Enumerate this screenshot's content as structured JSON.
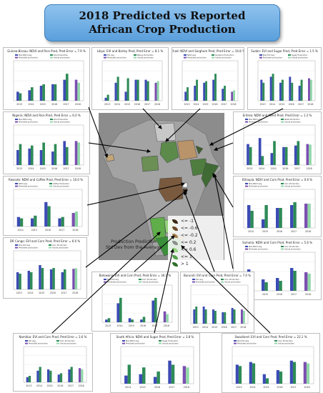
{
  "title": {
    "line1": "2018 Predicted vs Reported",
    "line2": "African Crop Production"
  },
  "colors": {
    "ndvi": "#3c4bb4",
    "crop": "#2e8b57",
    "predicted": "#7b4fb0",
    "actual": "#90d8a8"
  },
  "legend": {
    "items": [
      "<= -1",
      "<= -0.6",
      "<= -0.2",
      "<= 0.2",
      "<= 0.6",
      "<= 1",
      "> 1"
    ],
    "caption_line1": "Production Prediction",
    "caption_line2": "Std Dev from the Average"
  },
  "panels": [
    {
      "id": "guinea-bissau",
      "title": "Guinea-Bissau: NDVI and Rice Prod, Pred Error = 7.9 %"
    },
    {
      "id": "libya",
      "title": "Libya: EVI and Barley Prod, Pred Error = 8.1 %"
    },
    {
      "id": "chad",
      "title": "Chad: NDVI and Sorghum Prod, Pred Error = 16.8 %"
    },
    {
      "id": "sudan",
      "title": "Sudan: EVI and Sugar Prod, Pred Error = 1.5 %"
    },
    {
      "id": "nigeria",
      "title": "Nigeria: NDVI and Rice Prod, Pred Error = 6.0 %"
    },
    {
      "id": "eritrea",
      "title": "Eritrea: NDVI and Millet Prod, Pred Error = 1.2 %"
    },
    {
      "id": "rwanda",
      "title": "Rwanda: NDVI and Coffee Prod, Pred Error = 10.0 %"
    },
    {
      "id": "ethiopia",
      "title": "Ethiopia: NDVI and Corn Prod, Pred Error = 0.6 %"
    },
    {
      "id": "dr-congo",
      "title": "DR Congo: EVI and Corn Prod, Pred Error = 6.6 %"
    },
    {
      "id": "somalia",
      "title": "Somalia: NDVI and Corn Prod, Pred Error = 5.6 %"
    },
    {
      "id": "botswana",
      "title": "Botswana: EVI and Corn Prod, Pred Error = 36.1 %"
    },
    {
      "id": "burundi",
      "title": "Burundi: EVI and Corn Prod, Pred Error = 7.0 %"
    },
    {
      "id": "namibia",
      "title": "Namibia: EVI and Corn Prod, Pred Error = 3.6 %"
    },
    {
      "id": "south-africa",
      "title": "South Africa: NDVI and Sugar Prod, Pred Error = 3.8 %"
    },
    {
      "id": "swaziland",
      "title": "Swaziland: EVI and Corn Prod, Pred Error = 22.1 %"
    }
  ],
  "chart_data": [
    {
      "id": "guinea-bissau",
      "type": "bar",
      "categories": [
        "2013",
        "2014",
        "2015",
        "2016",
        "2017",
        "2018"
      ],
      "series": [
        {
          "name": "Max NDVI Avg",
          "values": [
            0.3,
            0.35,
            0.5,
            0.55,
            0.7,
            0.0
          ]
        },
        {
          "name": "Rice Production",
          "values": [
            0.25,
            0.45,
            0.55,
            0.55,
            0.9,
            0.0
          ]
        },
        {
          "name": "Predicted production",
          "values": [
            0,
            0,
            0,
            0,
            0,
            0.7
          ]
        },
        {
          "name": "Actual production",
          "values": [
            0,
            0,
            0,
            0,
            0,
            0.6
          ]
        }
      ]
    },
    {
      "id": "libya",
      "type": "bar",
      "categories": [
        "2013",
        "2014",
        "2015",
        "2016",
        "2017",
        "2018"
      ],
      "series": [
        {
          "name": "EVI Avg",
          "values": [
            0.1,
            0.6,
            0.3,
            0.7,
            0.7,
            0.0
          ]
        },
        {
          "name": "Barley Production",
          "values": [
            0.2,
            0.8,
            0.75,
            0.7,
            0.65,
            0.0
          ]
        },
        {
          "name": "Predicted production",
          "values": [
            0,
            0,
            0,
            0,
            0,
            0.6
          ]
        },
        {
          "name": "Actual production",
          "values": [
            0,
            0,
            0,
            0,
            0,
            0.65
          ]
        }
      ]
    },
    {
      "id": "chad",
      "type": "bar",
      "categories": [
        "2013",
        "2014",
        "2015",
        "2016",
        "2017",
        "2018"
      ],
      "series": [
        {
          "name": "NDVI Avg",
          "values": [
            0.3,
            0.5,
            0.6,
            0.7,
            0.4,
            0.0
          ]
        },
        {
          "name": "Sorghum Production",
          "values": [
            0.45,
            0.7,
            0.65,
            0.9,
            0.5,
            0.0
          ]
        },
        {
          "name": "Predicted production",
          "values": [
            0,
            0,
            0,
            0,
            0,
            0.3
          ]
        },
        {
          "name": "Actual production",
          "values": [
            0,
            0,
            0,
            0,
            0,
            0.35
          ]
        }
      ]
    },
    {
      "id": "sudan",
      "type": "bar",
      "categories": [
        "2013",
        "2014",
        "2015",
        "2016",
        "2017",
        "2018"
      ],
      "series": [
        {
          "name": "Max EVI Avg",
          "values": [
            0.7,
            0.8,
            0.6,
            0.8,
            0.5,
            0.0
          ]
        },
        {
          "name": "Sugar Production",
          "values": [
            0.6,
            0.9,
            0.7,
            0.6,
            0.7,
            0.0
          ]
        },
        {
          "name": "Predicted production",
          "values": [
            0,
            0,
            0,
            0,
            0,
            0.75
          ]
        },
        {
          "name": "Actual production",
          "values": [
            0,
            0,
            0,
            0,
            0,
            0.7
          ]
        }
      ]
    },
    {
      "id": "nigeria",
      "type": "bar",
      "categories": [
        "2013",
        "2014",
        "2015",
        "2016",
        "2017",
        "2018"
      ],
      "series": [
        {
          "name": "Max NDVI Avg",
          "values": [
            0.5,
            0.55,
            0.5,
            0.45,
            0.8,
            0.0
          ]
        },
        {
          "name": "Rice Production",
          "values": [
            0.7,
            0.65,
            0.75,
            0.7,
            0.6,
            0.0
          ]
        },
        {
          "name": "Predicted production",
          "values": [
            0,
            0,
            0,
            0,
            0,
            0.8
          ]
        },
        {
          "name": "Actual production",
          "values": [
            0,
            0,
            0,
            0,
            0,
            0.75
          ]
        }
      ]
    },
    {
      "id": "eritrea",
      "type": "bar",
      "categories": [
        "2013",
        "2014",
        "2015",
        "2016",
        "2017",
        "2018"
      ],
      "series": [
        {
          "name": "Max NDVI Avg",
          "values": [
            0.7,
            0.9,
            0.4,
            0.6,
            0.65,
            0.0
          ]
        },
        {
          "name": "Millet Production",
          "values": [
            0.6,
            0.3,
            0.8,
            0.6,
            0.8,
            0.0
          ]
        },
        {
          "name": "Predicted production",
          "values": [
            0,
            0,
            0,
            0,
            0,
            0.7
          ]
        },
        {
          "name": "Actual production",
          "values": [
            0,
            0,
            0,
            0,
            0,
            0.68
          ]
        }
      ]
    },
    {
      "id": "rwanda",
      "type": "bar",
      "categories": [
        "2014",
        "2015",
        "2016",
        "2017",
        "2018"
      ],
      "series": [
        {
          "name": "NDVI Avg",
          "values": [
            0.35,
            0.3,
            0.9,
            0.3,
            0.0
          ]
        },
        {
          "name": "Coffee Production",
          "values": [
            0.3,
            0.4,
            0.75,
            0.35,
            0.0
          ]
        },
        {
          "name": "Predicted production",
          "values": [
            0,
            0,
            0,
            0,
            0.5
          ]
        },
        {
          "name": "Actual production",
          "values": [
            0,
            0,
            0,
            0,
            0.55
          ]
        }
      ]
    },
    {
      "id": "ethiopia",
      "type": "bar",
      "categories": [
        "2014",
        "2015",
        "2016",
        "2017",
        "2018"
      ],
      "series": [
        {
          "name": "Max NDVI Avg",
          "values": [
            0.8,
            0.3,
            0.7,
            0.8,
            0.0
          ]
        },
        {
          "name": "Corn Production",
          "values": [
            0.6,
            0.8,
            0.7,
            0.9,
            0.0
          ]
        },
        {
          "name": "Predicted production",
          "values": [
            0,
            0,
            0,
            0,
            0.85
          ]
        },
        {
          "name": "Actual production",
          "values": [
            0,
            0,
            0,
            0,
            0.85
          ]
        }
      ]
    },
    {
      "id": "dr-congo",
      "type": "bar",
      "categories": [
        "2013",
        "2014",
        "2015",
        "2016",
        "2017",
        "2018"
      ],
      "series": [
        {
          "name": "Max EVI Avg",
          "values": [
            0.6,
            0.65,
            0.85,
            0.7,
            0.6,
            0.0
          ]
        },
        {
          "name": "Corn Production",
          "values": [
            0.55,
            0.6,
            0.75,
            0.75,
            0.7,
            0.0
          ]
        },
        {
          "name": "Predicted production",
          "values": [
            0,
            0,
            0,
            0,
            0,
            0.72
          ]
        },
        {
          "name": "Actual production",
          "values": [
            0,
            0,
            0,
            0,
            0,
            0.74
          ]
        }
      ]
    },
    {
      "id": "somalia",
      "type": "bar",
      "categories": [
        "2014",
        "2015",
        "2016",
        "2017",
        "2018"
      ],
      "series": [
        {
          "name": "Max NDVI Avg",
          "values": [
            0.75,
            0.4,
            0.45,
            0.8,
            0.0
          ]
        },
        {
          "name": "Corn Production",
          "values": [
            0.55,
            0.3,
            0.35,
            0.7,
            0.0
          ]
        },
        {
          "name": "Predicted production",
          "values": [
            0,
            0,
            0,
            0,
            0.65
          ]
        },
        {
          "name": "Actual production",
          "values": [
            0,
            0,
            0,
            0,
            0.6
          ]
        }
      ]
    },
    {
      "id": "botswana",
      "type": "bar",
      "categories": [
        "2013",
        "2014",
        "2015",
        "2016",
        "2017",
        "2018"
      ],
      "series": [
        {
          "name": "Max EVI Avg",
          "values": [
            0.1,
            0.7,
            0.15,
            0.1,
            0.8,
            0.0
          ]
        },
        {
          "name": "Corn Production",
          "values": [
            0.15,
            0.9,
            0.1,
            0.2,
            0.9,
            0.0
          ]
        },
        {
          "name": "Predicted production",
          "values": [
            0,
            0,
            0,
            0,
            0,
            0.4
          ]
        },
        {
          "name": "Actual production",
          "values": [
            0,
            0,
            0,
            0,
            0,
            0.3
          ]
        }
      ]
    },
    {
      "id": "burundi",
      "type": "bar",
      "categories": [
        "2013",
        "2014",
        "2015",
        "2016",
        "2017",
        "2018"
      ],
      "series": [
        {
          "name": "EVI Avg",
          "values": [
            0.5,
            0.6,
            0.5,
            0.4,
            0.55,
            0.0
          ]
        },
        {
          "name": "Corn Production",
          "values": [
            0.6,
            0.5,
            0.45,
            0.4,
            0.5,
            0.0
          ]
        },
        {
          "name": "Predicted production",
          "values": [
            0,
            0,
            0,
            0,
            0,
            0.5
          ]
        },
        {
          "name": "Actual production",
          "values": [
            0,
            0,
            0,
            0,
            0,
            0.45
          ]
        }
      ]
    },
    {
      "id": "namibia",
      "type": "bar",
      "categories": [
        "2013",
        "2014",
        "2015",
        "2016",
        "2017",
        "2018"
      ],
      "series": [
        {
          "name": "EVI Avg",
          "values": [
            0.2,
            0.45,
            0.5,
            0.3,
            0.5,
            0.0
          ]
        },
        {
          "name": "Corn Production",
          "values": [
            0.25,
            0.6,
            0.45,
            0.35,
            0.6,
            0.0
          ]
        },
        {
          "name": "Predicted production",
          "values": [
            0,
            0,
            0,
            0,
            0,
            0.55
          ]
        },
        {
          "name": "Actual production",
          "values": [
            0,
            0,
            0,
            0,
            0,
            0.5
          ]
        }
      ]
    },
    {
      "id": "south-africa",
      "type": "bar",
      "categories": [
        "2014",
        "2015",
        "2016",
        "2017",
        "2018"
      ],
      "series": [
        {
          "name": "Max NDVI Avg",
          "values": [
            0.3,
            0.35,
            0.25,
            0.85,
            0.0
          ]
        },
        {
          "name": "Sugar Production",
          "values": [
            0.7,
            0.6,
            0.45,
            0.7,
            0.0
          ]
        },
        {
          "name": "Predicted production",
          "values": [
            0,
            0,
            0,
            0,
            0.65
          ]
        },
        {
          "name": "Actual production",
          "values": [
            0,
            0,
            0,
            0,
            0.6
          ]
        }
      ]
    },
    {
      "id": "swaziland",
      "type": "bar",
      "categories": [
        "2013",
        "2014",
        "2015",
        "2016",
        "2017",
        "2018"
      ],
      "series": [
        {
          "name": "Max EVI Avg",
          "values": [
            0.7,
            0.8,
            0.35,
            0.5,
            0.85,
            0.0
          ]
        },
        {
          "name": "Corn Production",
          "values": [
            0.65,
            0.75,
            0.2,
            0.45,
            0.8,
            0.0
          ]
        },
        {
          "name": "Predicted production",
          "values": [
            0,
            0,
            0,
            0,
            0,
            0.8
          ]
        },
        {
          "name": "Actual production",
          "values": [
            0,
            0,
            0,
            0,
            0,
            0.75
          ]
        }
      ]
    }
  ]
}
